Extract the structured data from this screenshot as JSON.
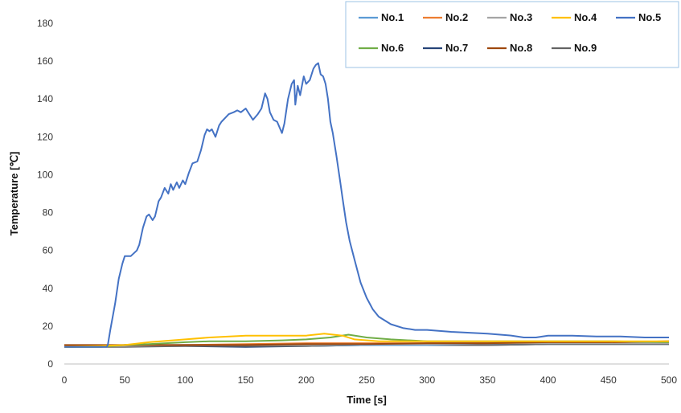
{
  "chart_data": {
    "type": "line",
    "title": "",
    "xlabel": "Time [s]",
    "ylabel": "Temperature [℃]",
    "xlim": [
      0,
      500
    ],
    "ylim": [
      0,
      180
    ],
    "x_ticks": [
      0,
      50,
      100,
      150,
      200,
      250,
      300,
      350,
      400,
      450,
      500
    ],
    "y_ticks": [
      0,
      20,
      40,
      60,
      80,
      100,
      120,
      140,
      160,
      180
    ],
    "grid": false,
    "legend_position": "top-right",
    "series": [
      {
        "name": "No.1",
        "color": "#5b9bd5",
        "points": [
          [
            0,
            9
          ],
          [
            50,
            10
          ],
          [
            100,
            10
          ],
          [
            150,
            10
          ],
          [
            200,
            10
          ],
          [
            250,
            10
          ],
          [
            300,
            10
          ],
          [
            350,
            11
          ],
          [
            400,
            11
          ],
          [
            450,
            11
          ],
          [
            500,
            11
          ]
        ]
      },
      {
        "name": "No.2",
        "color": "#ed7d31",
        "points": [
          [
            0,
            9.5
          ],
          [
            50,
            10
          ],
          [
            100,
            10
          ],
          [
            150,
            10.5
          ],
          [
            200,
            11
          ],
          [
            250,
            11
          ],
          [
            300,
            11
          ],
          [
            350,
            11
          ],
          [
            400,
            11.5
          ],
          [
            450,
            11.5
          ],
          [
            500,
            12
          ]
        ]
      },
      {
        "name": "No.3",
        "color": "#a5a5a5",
        "points": [
          [
            0,
            9
          ],
          [
            50,
            9.5
          ],
          [
            100,
            10
          ],
          [
            150,
            10
          ],
          [
            200,
            10
          ],
          [
            250,
            10.5
          ],
          [
            300,
            10.5
          ],
          [
            350,
            11
          ],
          [
            400,
            11
          ],
          [
            450,
            11
          ],
          [
            500,
            11
          ]
        ]
      },
      {
        "name": "No.4",
        "color": "#ffc000",
        "points": [
          [
            0,
            9
          ],
          [
            30,
            9.5
          ],
          [
            50,
            10
          ],
          [
            70,
            11.5
          ],
          [
            100,
            13
          ],
          [
            120,
            14
          ],
          [
            150,
            15
          ],
          [
            180,
            15
          ],
          [
            200,
            15
          ],
          [
            215,
            16
          ],
          [
            230,
            15
          ],
          [
            240,
            13
          ],
          [
            260,
            12
          ],
          [
            300,
            12
          ],
          [
            350,
            12
          ],
          [
            400,
            12
          ],
          [
            450,
            12
          ],
          [
            500,
            12
          ]
        ]
      },
      {
        "name": "No.5",
        "color": "#4472c4",
        "points": [
          [
            0,
            9
          ],
          [
            35,
            9
          ],
          [
            36,
            10
          ],
          [
            38,
            18
          ],
          [
            42,
            32
          ],
          [
            45,
            45
          ],
          [
            48,
            53
          ],
          [
            50,
            57
          ],
          [
            55,
            57
          ],
          [
            60,
            60
          ],
          [
            62,
            63
          ],
          [
            65,
            72
          ],
          [
            68,
            78
          ],
          [
            70,
            79
          ],
          [
            73,
            76
          ],
          [
            75,
            78
          ],
          [
            78,
            86
          ],
          [
            80,
            88
          ],
          [
            83,
            93
          ],
          [
            86,
            90
          ],
          [
            88,
            95
          ],
          [
            90,
            92
          ],
          [
            93,
            96
          ],
          [
            95,
            93
          ],
          [
            98,
            97
          ],
          [
            100,
            95
          ],
          [
            103,
            101
          ],
          [
            106,
            106
          ],
          [
            110,
            107
          ],
          [
            113,
            113
          ],
          [
            116,
            121
          ],
          [
            118,
            124
          ],
          [
            120,
            123
          ],
          [
            122,
            124
          ],
          [
            125,
            120
          ],
          [
            128,
            126
          ],
          [
            130,
            128
          ],
          [
            133,
            130
          ],
          [
            136,
            132
          ],
          [
            140,
            133
          ],
          [
            143,
            134
          ],
          [
            146,
            133
          ],
          [
            150,
            135
          ],
          [
            153,
            132
          ],
          [
            156,
            129
          ],
          [
            160,
            132
          ],
          [
            163,
            135
          ],
          [
            166,
            143
          ],
          [
            168,
            140
          ],
          [
            170,
            133
          ],
          [
            173,
            129
          ],
          [
            176,
            128
          ],
          [
            180,
            122
          ],
          [
            182,
            127
          ],
          [
            185,
            140
          ],
          [
            188,
            148
          ],
          [
            190,
            150
          ],
          [
            191,
            137
          ],
          [
            193,
            147
          ],
          [
            195,
            142
          ],
          [
            198,
            152
          ],
          [
            200,
            148
          ],
          [
            203,
            150
          ],
          [
            206,
            156
          ],
          [
            208,
            158
          ],
          [
            210,
            159
          ],
          [
            212,
            153
          ],
          [
            214,
            152
          ],
          [
            216,
            148
          ],
          [
            218,
            140
          ],
          [
            220,
            128
          ],
          [
            222,
            122
          ],
          [
            225,
            110
          ],
          [
            228,
            97
          ],
          [
            230,
            88
          ],
          [
            233,
            75
          ],
          [
            236,
            65
          ],
          [
            240,
            55
          ],
          [
            245,
            43
          ],
          [
            250,
            35
          ],
          [
            255,
            29
          ],
          [
            260,
            25
          ],
          [
            270,
            21
          ],
          [
            280,
            19
          ],
          [
            290,
            18
          ],
          [
            300,
            18
          ],
          [
            320,
            17
          ],
          [
            350,
            16
          ],
          [
            370,
            15
          ],
          [
            380,
            14
          ],
          [
            390,
            14
          ],
          [
            400,
            15
          ],
          [
            420,
            15
          ],
          [
            440,
            14.5
          ],
          [
            460,
            14.5
          ],
          [
            480,
            14
          ],
          [
            500,
            14
          ]
        ]
      },
      {
        "name": "No.6",
        "color": "#70ad47",
        "points": [
          [
            0,
            9
          ],
          [
            30,
            9
          ],
          [
            50,
            10
          ],
          [
            70,
            10.5
          ],
          [
            100,
            11.5
          ],
          [
            120,
            12
          ],
          [
            150,
            12
          ],
          [
            180,
            12.5
          ],
          [
            200,
            13
          ],
          [
            220,
            14
          ],
          [
            235,
            15.5
          ],
          [
            250,
            14
          ],
          [
            270,
            13
          ],
          [
            300,
            12
          ],
          [
            350,
            12
          ],
          [
            400,
            12
          ],
          [
            450,
            12
          ],
          [
            500,
            11.5
          ]
        ]
      },
      {
        "name": "No.7",
        "color": "#264478",
        "points": [
          [
            0,
            9
          ],
          [
            50,
            9.5
          ],
          [
            100,
            9.5
          ],
          [
            150,
            9
          ],
          [
            200,
            9.5
          ],
          [
            250,
            10
          ],
          [
            300,
            10
          ],
          [
            350,
            10
          ],
          [
            400,
            10.5
          ],
          [
            450,
            10.5
          ],
          [
            500,
            10.5
          ]
        ]
      },
      {
        "name": "No.8",
        "color": "#9e480e",
        "points": [
          [
            0,
            10
          ],
          [
            50,
            10
          ],
          [
            100,
            10
          ],
          [
            150,
            10
          ],
          [
            200,
            10.5
          ],
          [
            250,
            10.5
          ],
          [
            300,
            11
          ],
          [
            350,
            11
          ],
          [
            400,
            11.5
          ],
          [
            450,
            11.5
          ],
          [
            500,
            12
          ]
        ]
      },
      {
        "name": "No.9",
        "color": "#636363",
        "points": [
          [
            0,
            9
          ],
          [
            50,
            9
          ],
          [
            100,
            9.5
          ],
          [
            150,
            9.5
          ],
          [
            200,
            9.5
          ],
          [
            250,
            10
          ],
          [
            300,
            10
          ],
          [
            350,
            10
          ],
          [
            400,
            10.5
          ],
          [
            450,
            10.5
          ],
          [
            500,
            10.5
          ]
        ]
      }
    ]
  }
}
